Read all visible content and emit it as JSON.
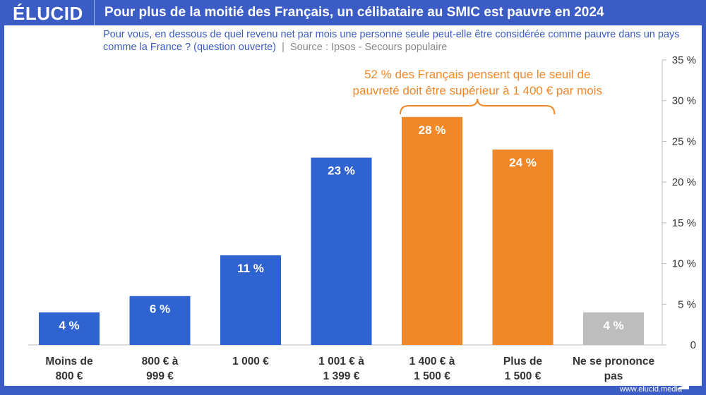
{
  "header": {
    "logo": "ÉLUCID",
    "title": "Pour plus de la moitié des Français, un célibataire au SMIC est pauvre en 2024"
  },
  "subtitle": {
    "question": "Pour vous, en dessous de quel revenu net par mois une personne seule peut-elle être considérée comme pauvre dans un pays comme la France ? (question ouverte)",
    "separator": "|",
    "source": "Source : Ipsos - Secours populaire"
  },
  "footer": {
    "url": "www.elucid.media"
  },
  "chart_data": {
    "type": "bar",
    "categories": [
      [
        "Moins de",
        "800 €"
      ],
      [
        "800 € à",
        "999 €"
      ],
      [
        "1 000 €"
      ],
      [
        "1 001 € à",
        "1 399 €"
      ],
      [
        "1 400 € à",
        "1 500 €"
      ],
      [
        "Plus de",
        "1 500 €"
      ],
      [
        "Ne se prononce",
        "pas"
      ]
    ],
    "values": [
      4,
      6,
      11,
      23,
      28,
      24,
      4
    ],
    "data_labels": [
      "4 %",
      "6 %",
      "11 %",
      "23 %",
      "28 %",
      "24 %",
      "4 %"
    ],
    "colors": [
      "#2f63cf",
      "#2f63cf",
      "#2f63cf",
      "#2f63cf",
      "#f0882a",
      "#f0882a",
      "#bdbdbd"
    ],
    "ylim": [
      0,
      35
    ],
    "yticks": [
      0,
      5,
      10,
      15,
      20,
      25,
      30,
      35
    ],
    "ytick_labels": [
      "0",
      "5 %",
      "10 %",
      "15 %",
      "20 %",
      "25 %",
      "30 %",
      "35 %"
    ],
    "axis_position": "right",
    "grid": false,
    "annotation": {
      "lines": [
        "52 % des Français pensent que le seuil de",
        "pauvreté doit être supérieur à 1 400 € par mois"
      ],
      "color": "#f0882a",
      "spans_categories": [
        4,
        5
      ]
    }
  }
}
